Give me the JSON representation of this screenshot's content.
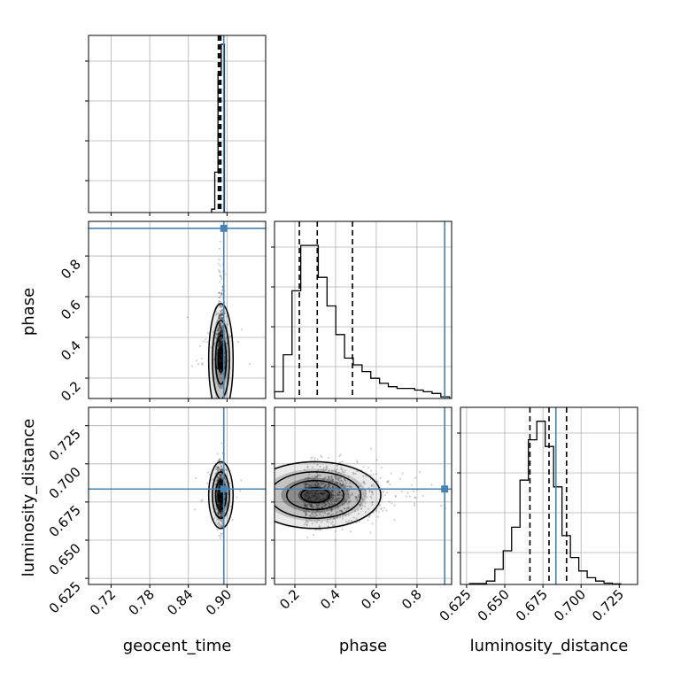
{
  "chart_data": {
    "type": "corner",
    "parameters": [
      "geocent_time",
      "phase",
      "luminosity_distance"
    ],
    "truth": {
      "geocent_time": 0.895,
      "phase": 0.936,
      "luminosity_distance": 0.6835
    },
    "truth_color": "#4682b4",
    "ranges": {
      "geocent_time": [
        0.685,
        0.96
      ],
      "phase": [
        0.1,
        0.97
      ],
      "luminosity_distance": [
        0.621,
        0.737
      ]
    },
    "ticks": {
      "geocent_time": {
        "values": [
          0.72,
          0.78,
          0.84,
          0.9
        ],
        "labels": [
          "0.72",
          "0.78",
          "0.84",
          "0.90"
        ]
      },
      "phase": {
        "values": [
          0.2,
          0.4,
          0.6,
          0.8
        ],
        "labels": [
          "0.2",
          "0.4",
          "0.6",
          "0.8"
        ]
      },
      "luminosity_distance": {
        "values": [
          0.625,
          0.65,
          0.675,
          0.7,
          0.725
        ],
        "labels": [
          "0.625",
          "0.650",
          "0.675",
          "0.700",
          "0.725"
        ]
      }
    },
    "histograms": {
      "geocent_time": {
        "edges": [
          0.876,
          0.881,
          0.886,
          0.891,
          0.896,
          0.901
        ],
        "counts": [
          0.02,
          0.24,
          0.82,
          1.0,
          0.0
        ],
        "quantiles": [
          0.8865,
          0.8885,
          0.8905
        ]
      },
      "phase": {
        "edges": [
          0.1,
          0.143,
          0.186,
          0.229,
          0.272,
          0.315,
          0.358,
          0.401,
          0.444,
          0.487,
          0.53,
          0.573,
          0.616,
          0.659,
          0.702,
          0.745,
          0.788,
          0.831,
          0.874,
          0.917,
          0.96
        ],
        "counts": [
          0.04,
          0.26,
          0.64,
          0.91,
          0.91,
          0.72,
          0.55,
          0.38,
          0.24,
          0.2,
          0.16,
          0.12,
          0.09,
          0.07,
          0.06,
          0.06,
          0.05,
          0.04,
          0.03,
          0.01
        ],
        "quantiles": [
          0.222,
          0.31,
          0.483
        ]
      },
      "luminosity_distance": {
        "edges": [
          0.627,
          0.6325,
          0.638,
          0.6435,
          0.649,
          0.6545,
          0.66,
          0.6655,
          0.671,
          0.6765,
          0.682,
          0.6875,
          0.693,
          0.6985,
          0.704,
          0.7095,
          0.715,
          0.7205,
          0.726
        ],
        "counts": [
          0.005,
          0.005,
          0.02,
          0.09,
          0.2,
          0.34,
          0.62,
          0.86,
          0.97,
          0.82,
          0.58,
          0.29,
          0.16,
          0.08,
          0.04,
          0.02,
          0.008,
          0.003
        ],
        "quantiles": [
          0.6665,
          0.679,
          0.6905
        ]
      }
    },
    "pairs": [
      {
        "x": "geocent_time",
        "y": "phase",
        "cx": 0.8905,
        "cy": 0.29,
        "sx": 0.0035,
        "sy": 0.12
      },
      {
        "x": "geocent_time",
        "y": "luminosity_distance",
        "cx": 0.8905,
        "cy": 0.6795,
        "sx": 0.0035,
        "sy": 0.0095
      },
      {
        "x": "phase",
        "y": "luminosity_distance",
        "cx": 0.3,
        "cy": 0.6795,
        "sx": 0.14,
        "sy": 0.0095
      }
    ]
  }
}
